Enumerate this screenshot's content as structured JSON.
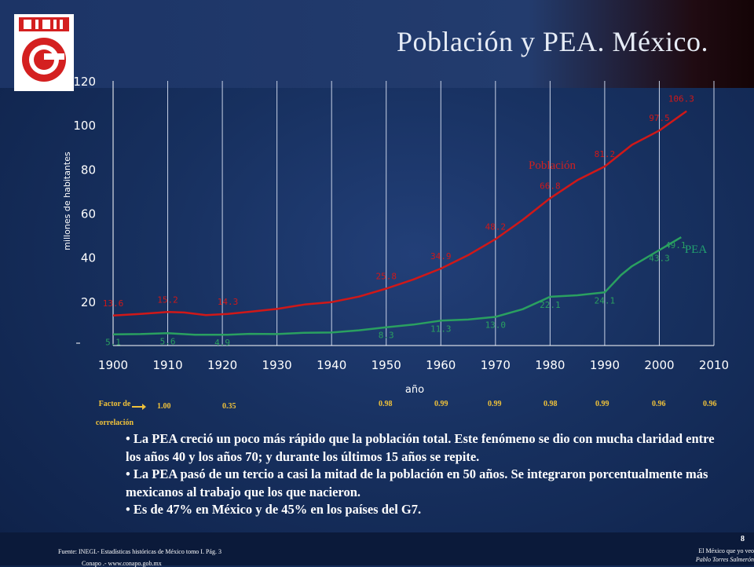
{
  "title": "Población y PEA. México.",
  "chart_data": {
    "type": "line",
    "xlabel": "año",
    "ylabel": "millones de habitantes",
    "xlim": [
      1900,
      2010
    ],
    "ylim": [
      0,
      120
    ],
    "x_ticks": [
      "1900",
      "1910",
      "1920",
      "1930",
      "1940",
      "1950",
      "1960",
      "1970",
      "1980",
      "1990",
      "2000",
      "2010"
    ],
    "y_ticks": [
      "20",
      "40",
      "60",
      "80",
      "100",
      "120"
    ],
    "grid": "vertical",
    "colors": {
      "poblacion": "#d01818",
      "pea": "#2aa060",
      "poblacion_label": "#d02020",
      "pea_label": "#22a070"
    },
    "series": [
      {
        "name": "Población",
        "color": "#d01818",
        "points": [
          [
            1900,
            13.6
          ],
          [
            1905,
            14.3
          ],
          [
            1910,
            15.2
          ],
          [
            1913,
            15.0
          ],
          [
            1917,
            13.8
          ],
          [
            1921,
            14.3
          ],
          [
            1925,
            15.3
          ],
          [
            1930,
            16.6
          ],
          [
            1935,
            18.6
          ],
          [
            1940,
            19.7
          ],
          [
            1945,
            22.2
          ],
          [
            1950,
            25.8
          ],
          [
            1955,
            30.0
          ],
          [
            1960,
            34.9
          ],
          [
            1965,
            41.0
          ],
          [
            1970,
            48.2
          ],
          [
            1975,
            57.0
          ],
          [
            1980,
            66.8
          ],
          [
            1985,
            75.0
          ],
          [
            1990,
            81.2
          ],
          [
            1995,
            91.0
          ],
          [
            2000,
            97.5
          ],
          [
            2005,
            106.3
          ]
        ],
        "labels": [
          {
            "x": 1900,
            "y": 13.6,
            "text": "13.6"
          },
          {
            "x": 1910,
            "y": 15.2,
            "text": "15.2"
          },
          {
            "x": 1921,
            "y": 14.3,
            "text": "14.3"
          },
          {
            "x": 1950,
            "y": 25.8,
            "text": "25.8"
          },
          {
            "x": 1960,
            "y": 34.9,
            "text": "34.9"
          },
          {
            "x": 1970,
            "y": 48.2,
            "text": "48.2"
          },
          {
            "x": 1980,
            "y": 66.8,
            "text": "66.8"
          },
          {
            "x": 1990,
            "y": 81.2,
            "text": "81.2"
          },
          {
            "x": 2000,
            "y": 97.5,
            "text": "97.5"
          },
          {
            "x": 2004,
            "y": 106.3,
            "text": "106.3"
          }
        ]
      },
      {
        "name": "PEA",
        "color": "#2aa060",
        "points": [
          [
            1900,
            5.1
          ],
          [
            1905,
            5.2
          ],
          [
            1910,
            5.6
          ],
          [
            1915,
            4.9
          ],
          [
            1921,
            4.9
          ],
          [
            1925,
            5.3
          ],
          [
            1930,
            5.2
          ],
          [
            1935,
            5.8
          ],
          [
            1940,
            5.9
          ],
          [
            1945,
            6.9
          ],
          [
            1950,
            8.3
          ],
          [
            1955,
            9.5
          ],
          [
            1960,
            11.3
          ],
          [
            1965,
            11.8
          ],
          [
            1970,
            13.0
          ],
          [
            1975,
            16.5
          ],
          [
            1980,
            22.1
          ],
          [
            1985,
            22.8
          ],
          [
            1990,
            24.1
          ],
          [
            1993,
            32.0
          ],
          [
            1995,
            36.0
          ],
          [
            2000,
            43.3
          ],
          [
            2004,
            49.1
          ]
        ],
        "labels": [
          {
            "x": 1900,
            "y": 5.1,
            "text": "5.1"
          },
          {
            "x": 1910,
            "y": 5.6,
            "text": "5.6"
          },
          {
            "x": 1920,
            "y": 4.9,
            "text": "4.9"
          },
          {
            "x": 1950,
            "y": 8.3,
            "text": "8.3"
          },
          {
            "x": 1960,
            "y": 11.3,
            "text": "11.3"
          },
          {
            "x": 1970,
            "y": 13.0,
            "text": "13.0"
          },
          {
            "x": 1980,
            "y": 22.1,
            "text": "22.1"
          },
          {
            "x": 1990,
            "y": 24.1,
            "text": "24.1"
          },
          {
            "x": 2000,
            "y": 43.3,
            "text": "43.3"
          },
          {
            "x": 2003,
            "y": 49.1,
            "text": "49.1"
          }
        ]
      }
    ],
    "series_names": {
      "poblacion": "Población",
      "pea": "PEA"
    }
  },
  "correlation": {
    "label_line1": "Factor de",
    "label_line2": "correlación",
    "values": [
      "1.00",
      "0.35",
      "0.98",
      "0.99",
      "0.99",
      "0.98",
      "0.99",
      "0.96",
      "0.96"
    ]
  },
  "bullets": [
    "La PEA creció un poco más rápido que la población total. Este fenómeno se dio con mucha claridad entre los años 40 y los años 70; y durante los últimos 15 años se repite.",
    "La PEA pasó de un tercio a casi la mitad de la población en 50 años. Se integraron porcentualmente más mexicanos al trabajo que los que nacieron.",
    "Es de 47% en México y de 45% en los países del G7."
  ],
  "footer": {
    "source": "Fuente: INEGI.- Estadísticas históricas de México tomo I. Pág. 3",
    "source2": "Conapo .- www.conapo.gob.mx",
    "page": "8",
    "credit1": "El México que yo veo",
    "credit2": "Pablo Torres Salmerón"
  }
}
